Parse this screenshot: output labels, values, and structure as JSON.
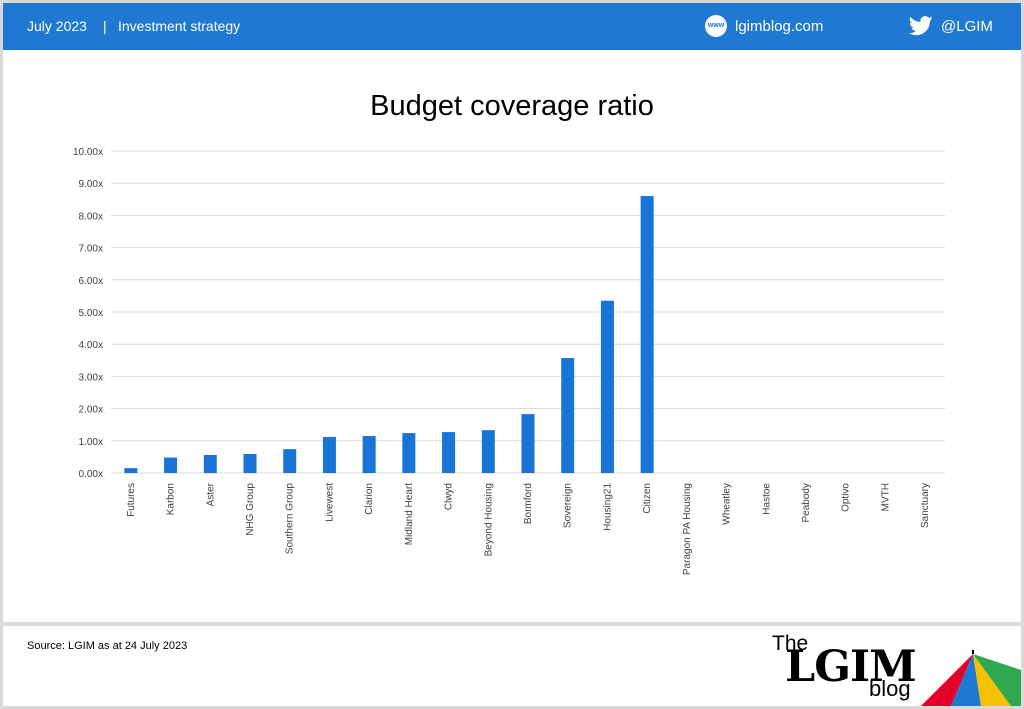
{
  "header": {
    "date": "July 2023",
    "separator": "|",
    "topic": "Investment strategy",
    "site_icon": "www",
    "site": "lgimblog.com",
    "twitter_icon": "twitter-bird-icon",
    "twitter_handle": "@LGIM"
  },
  "colors": {
    "header_bg": "#1f78d1",
    "bar": "#1874d6",
    "grid": "#d9d9d9"
  },
  "chart_data": {
    "type": "bar",
    "title": "Budget coverage ratio",
    "xlabel": "",
    "ylabel": "",
    "ylim": [
      0,
      10
    ],
    "y_ticks": [
      "0.00x",
      "1.00x",
      "2.00x",
      "3.00x",
      "4.00x",
      "5.00x",
      "6.00x",
      "7.00x",
      "8.00x",
      "9.00x",
      "10.00x"
    ],
    "grid": true,
    "categories": [
      "Futures",
      "Karbon",
      "Aster",
      "NHG Group",
      "Southern Group",
      "Livewest",
      "Clarion",
      "Midland Heart",
      "Clwyd",
      "Beyond Housing",
      "Bormford",
      "Sovereign",
      "Housing21",
      "Citizen",
      "Paragon PA Housing",
      "Wheatley",
      "Hastoe",
      "Peabody",
      "Optivo",
      "MVTH",
      "Sanctuary"
    ],
    "values": [
      0.15,
      0.48,
      0.56,
      0.59,
      0.74,
      1.12,
      1.15,
      1.24,
      1.27,
      1.33,
      1.83,
      3.57,
      5.35,
      8.6,
      0,
      0,
      0,
      0,
      0,
      0,
      0
    ]
  },
  "footer": {
    "source": "Source: LGIM as at 24 July 2023",
    "logo_the": "The",
    "logo_lgim": "LGIM",
    "logo_blog": "blog"
  }
}
